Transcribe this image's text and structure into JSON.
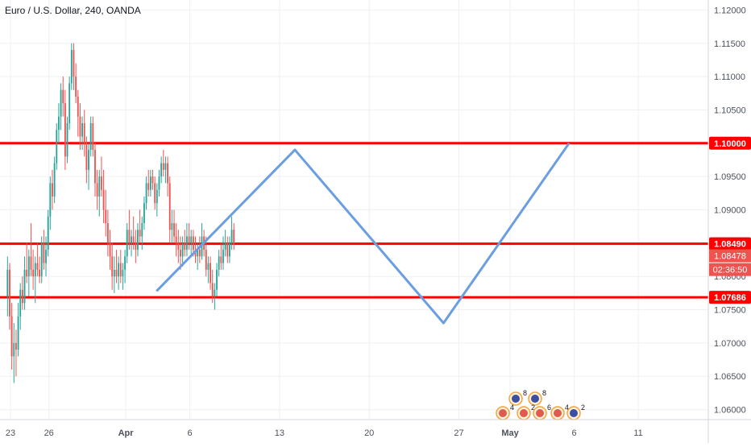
{
  "header": {
    "title": "Euro / U.S. Dollar, 240, OANDA"
  },
  "colors": {
    "bull": "#26a69a",
    "bear": "#ef5350",
    "level": "#ff0000",
    "pattern": "#6a9ee0",
    "grid": "#eef0f3",
    "axis_text": "#4c525e",
    "current_price_bg": "#ef5350",
    "countdown_bg": "#ef5350"
  },
  "chart_data": {
    "type": "candlestick",
    "title": "Euro / U.S. Dollar, 240, OANDA",
    "xlabel": "",
    "ylabel": "",
    "grid": true,
    "ylim": [
      1.0585,
      1.1215
    ],
    "x_ticks": [
      {
        "label": "23",
        "day": 0
      },
      {
        "label": "26",
        "day": 3
      },
      {
        "label": "Apr",
        "day": 9
      },
      {
        "label": "6",
        "day": 14
      },
      {
        "label": "13",
        "day": 21
      },
      {
        "label": "20",
        "day": 28
      },
      {
        "label": "27",
        "day": 35
      },
      {
        "label": "May",
        "day": 39
      },
      {
        "label": "6",
        "day": 44
      },
      {
        "label": "11",
        "day": 49
      }
    ],
    "y_ticks": [
      "1.12000",
      "1.11500",
      "1.11000",
      "1.10500",
      "1.10000",
      "1.09500",
      "1.09000",
      "1.08500",
      "1.08000",
      "1.07500",
      "1.07000",
      "1.06500",
      "1.06000"
    ],
    "horizontal_levels": [
      {
        "label": "1.10000",
        "value": 1.1
      },
      {
        "label": "1.08490",
        "value": 1.0849
      },
      {
        "label": "1.07686",
        "value": 1.07686
      }
    ],
    "current_price": {
      "label": "1.08478",
      "value": 1.08478
    },
    "countdown": "02:36:50",
    "pattern_line": [
      {
        "day": 11.4,
        "y": 1.0778
      },
      {
        "day": 22.2,
        "y": 1.099
      },
      {
        "day": 33.8,
        "y": 1.073
      },
      {
        "day": 43.6,
        "y": 1.1
      }
    ],
    "candles": [
      [
        1.077,
        1.083,
        1.074,
        1.081
      ],
      [
        1.081,
        1.082,
        1.072,
        1.074
      ],
      [
        1.074,
        1.076,
        1.066,
        1.068
      ],
      [
        1.068,
        1.073,
        1.064,
        1.07
      ],
      [
        1.07,
        1.072,
        1.065,
        1.069
      ],
      [
        1.069,
        1.076,
        1.068,
        1.074
      ],
      [
        1.074,
        1.079,
        1.072,
        1.078
      ],
      [
        1.078,
        1.08,
        1.075,
        1.076
      ],
      [
        1.076,
        1.083,
        1.075,
        1.081
      ],
      [
        1.081,
        1.085,
        1.079,
        1.08
      ],
      [
        1.08,
        1.084,
        1.077,
        1.083
      ],
      [
        1.083,
        1.088,
        1.08,
        1.081
      ],
      [
        1.081,
        1.084,
        1.078,
        1.08
      ],
      [
        1.08,
        1.083,
        1.076,
        1.082
      ],
      [
        1.082,
        1.085,
        1.08,
        1.081
      ],
      [
        1.081,
        1.083,
        1.079,
        1.08
      ],
      [
        1.08,
        1.086,
        1.079,
        1.085
      ],
      [
        1.085,
        1.087,
        1.081,
        1.082
      ],
      [
        1.082,
        1.086,
        1.08,
        1.084
      ],
      [
        1.084,
        1.09,
        1.083,
        1.089
      ],
      [
        1.089,
        1.095,
        1.087,
        1.094
      ],
      [
        1.094,
        1.096,
        1.09,
        1.092
      ],
      [
        1.092,
        1.098,
        1.091,
        1.097
      ],
      [
        1.097,
        1.103,
        1.096,
        1.102
      ],
      [
        1.102,
        1.106,
        1.1,
        1.104
      ],
      [
        1.104,
        1.109,
        1.102,
        1.108
      ],
      [
        1.108,
        1.11,
        1.104,
        1.106
      ],
      [
        1.106,
        1.108,
        1.096,
        1.098
      ],
      [
        1.098,
        1.104,
        1.097,
        1.103
      ],
      [
        1.103,
        1.11,
        1.102,
        1.109
      ],
      [
        1.109,
        1.115,
        1.108,
        1.114
      ],
      [
        1.114,
        1.115,
        1.108,
        1.11
      ],
      [
        1.11,
        1.112,
        1.106,
        1.107
      ],
      [
        1.107,
        1.108,
        1.101,
        1.104
      ],
      [
        1.104,
        1.106,
        1.099,
        1.101
      ],
      [
        1.101,
        1.104,
        1.099,
        1.103
      ],
      [
        1.103,
        1.105,
        1.098,
        1.1
      ],
      [
        1.1,
        1.101,
        1.094,
        1.096
      ],
      [
        1.096,
        1.1,
        1.093,
        1.099
      ],
      [
        1.099,
        1.104,
        1.098,
        1.103
      ],
      [
        1.103,
        1.104,
        1.098,
        1.099
      ],
      [
        1.099,
        1.1,
        1.092,
        1.094
      ],
      [
        1.094,
        1.096,
        1.09,
        1.092
      ],
      [
        1.092,
        1.096,
        1.089,
        1.095
      ],
      [
        1.095,
        1.098,
        1.092,
        1.093
      ],
      [
        1.093,
        1.096,
        1.088,
        1.09
      ],
      [
        1.09,
        1.093,
        1.086,
        1.088
      ],
      [
        1.088,
        1.09,
        1.083,
        1.085
      ],
      [
        1.085,
        1.087,
        1.081,
        1.083
      ],
      [
        1.083,
        1.085,
        1.078,
        1.08
      ],
      [
        1.08,
        1.083,
        1.0775,
        1.081
      ],
      [
        1.081,
        1.084,
        1.079,
        1.08
      ],
      [
        1.08,
        1.083,
        1.078,
        1.082
      ],
      [
        1.082,
        1.084,
        1.079,
        1.08
      ],
      [
        1.08,
        1.082,
        1.078,
        1.081
      ],
      [
        1.081,
        1.084,
        1.079,
        1.083
      ],
      [
        1.083,
        1.088,
        1.082,
        1.087
      ],
      [
        1.087,
        1.09,
        1.084,
        1.085
      ],
      [
        1.085,
        1.087,
        1.083,
        1.086
      ],
      [
        1.086,
        1.089,
        1.084,
        1.085
      ],
      [
        1.085,
        1.087,
        1.082,
        1.084
      ],
      [
        1.084,
        1.088,
        1.083,
        1.087
      ],
      [
        1.087,
        1.09,
        1.085,
        1.086
      ],
      [
        1.086,
        1.089,
        1.084,
        1.088
      ],
      [
        1.088,
        1.092,
        1.087,
        1.091
      ],
      [
        1.091,
        1.095,
        1.09,
        1.094
      ],
      [
        1.094,
        1.096,
        1.092,
        1.093
      ],
      [
        1.093,
        1.096,
        1.092,
        1.095
      ],
      [
        1.095,
        1.096,
        1.093,
        1.094
      ],
      [
        1.094,
        1.095,
        1.09,
        1.091
      ],
      [
        1.091,
        1.094,
        1.089,
        1.093
      ],
      [
        1.093,
        1.096,
        1.092,
        1.095
      ],
      [
        1.095,
        1.098,
        1.094,
        1.097
      ],
      [
        1.097,
        1.099,
        1.095,
        1.096
      ],
      [
        1.096,
        1.098,
        1.094,
        1.097
      ],
      [
        1.097,
        1.098,
        1.092,
        1.094
      ],
      [
        1.094,
        1.095,
        1.085,
        1.087
      ],
      [
        1.087,
        1.09,
        1.085,
        1.088
      ],
      [
        1.088,
        1.09,
        1.085,
        1.086
      ],
      [
        1.086,
        1.088,
        1.083,
        1.085
      ],
      [
        1.085,
        1.087,
        1.082,
        1.084
      ],
      [
        1.084,
        1.086,
        1.081,
        1.083
      ],
      [
        1.083,
        1.086,
        1.0815,
        1.085
      ],
      [
        1.085,
        1.087,
        1.083,
        1.084
      ],
      [
        1.084,
        1.088,
        1.083,
        1.086
      ],
      [
        1.086,
        1.088,
        1.084,
        1.085
      ],
      [
        1.085,
        1.087,
        1.083,
        1.086
      ],
      [
        1.086,
        1.087,
        1.083,
        1.084
      ],
      [
        1.084,
        1.086,
        1.082,
        1.083
      ],
      [
        1.083,
        1.085,
        1.081,
        1.084
      ],
      [
        1.084,
        1.086,
        1.082,
        1.083
      ],
      [
        1.083,
        1.088,
        1.0825,
        1.086
      ],
      [
        1.086,
        1.087,
        1.083,
        1.084
      ],
      [
        1.084,
        1.086,
        1.08,
        1.081
      ],
      [
        1.081,
        1.083,
        1.079,
        1.082
      ],
      [
        1.082,
        1.083,
        1.078,
        1.079
      ],
      [
        1.079,
        1.081,
        1.076,
        1.077
      ],
      [
        1.077,
        1.079,
        1.075,
        1.078
      ],
      [
        1.078,
        1.082,
        1.077,
        1.081
      ],
      [
        1.081,
        1.084,
        1.08,
        1.083
      ],
      [
        1.083,
        1.085,
        1.081,
        1.082
      ],
      [
        1.082,
        1.086,
        1.081,
        1.084
      ],
      [
        1.084,
        1.087,
        1.083,
        1.085
      ],
      [
        1.085,
        1.086,
        1.082,
        1.083
      ],
      [
        1.083,
        1.086,
        1.082,
        1.085
      ],
      [
        1.085,
        1.089,
        1.084,
        1.087
      ],
      [
        1.087,
        1.088,
        1.084,
        1.0848
      ]
    ]
  },
  "events": {
    "row1": [
      {
        "label": "8",
        "kind": "eu"
      },
      {
        "label": "8",
        "kind": "eu"
      }
    ],
    "row2": [
      {
        "label": "4",
        "kind": "us"
      },
      {
        "label": "2",
        "kind": "us"
      },
      {
        "label": "6",
        "kind": "us"
      },
      {
        "label": "4",
        "kind": "us"
      },
      {
        "label": "2",
        "kind": "eu"
      }
    ]
  }
}
